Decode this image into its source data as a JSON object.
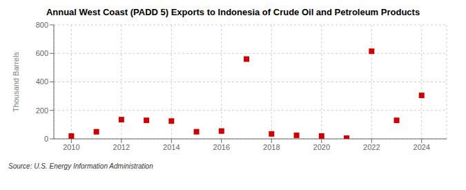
{
  "chart_data": {
    "type": "scatter",
    "title": "Annual West Coast (PADD 5) Exports to Indonesia of Crude Oil and Petroleum Products",
    "ylabel": "Thousand Barrels",
    "annotation": "Source: U.S. Energy Information Administration",
    "x": [
      2010,
      2011,
      2012,
      2013,
      2014,
      2015,
      2016,
      2017,
      2018,
      2019,
      2020,
      2021,
      2022,
      2023,
      2024
    ],
    "values": [
      20,
      50,
      135,
      130,
      125,
      50,
      55,
      560,
      35,
      25,
      20,
      5,
      615,
      130,
      305
    ],
    "color": "#cc0000",
    "marker": "square",
    "xlim": [
      2009.3,
      2025.0
    ],
    "xticks": [
      2010,
      2012,
      2014,
      2016,
      2018,
      2020,
      2022,
      2024
    ],
    "ylim": [
      0,
      800
    ],
    "yticks": [
      0,
      200,
      400,
      600,
      800
    ],
    "grid": true
  }
}
